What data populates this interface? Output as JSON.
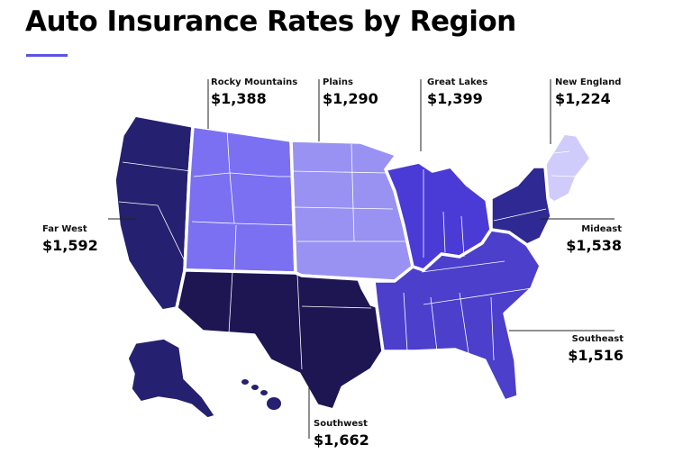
{
  "title": "Auto Insurance Rates by Region",
  "colors": {
    "accent_rule": "#5b53e0",
    "far_west": "#252070",
    "southwest": "#1e1553",
    "rocky_mountains": "#7b70f2",
    "plains": "#9992f3",
    "great_lakes": "#4a3ad6",
    "southeast": "#4b3fcb",
    "mideast": "#2f2993",
    "new_england": "#cfcbfb"
  },
  "regions": {
    "rocky_mountains": {
      "name": "Rocky Mountains",
      "value": "$1,388"
    },
    "plains": {
      "name": "Plains",
      "value": "$1,290"
    },
    "great_lakes": {
      "name": "Great Lakes",
      "value": "$1,399"
    },
    "new_england": {
      "name": "New England",
      "value": "$1,224"
    },
    "far_west": {
      "name": "Far West",
      "value": "$1,592"
    },
    "mideast": {
      "name": "Mideast",
      "value": "$1,538"
    },
    "southeast": {
      "name": "Southeast",
      "value": "$1,516"
    },
    "southwest": {
      "name": "Southwest",
      "value": "$1,662"
    }
  }
}
